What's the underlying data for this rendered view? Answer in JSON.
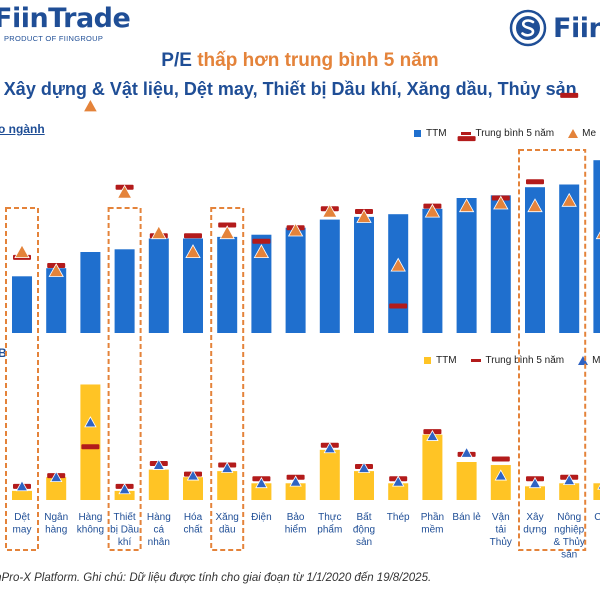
{
  "header": {
    "left_brand": "FiinTrade",
    "left_tagline": "PRODUCT OF FIINGROUP",
    "right_brand": "FiinG",
    "title_part1": "P/E ",
    "title_part2": "thấp hơn trung bình 5 năm",
    "subtitle": "ở Xây dựng & Vật liệu, Dệt may, Thiết bị Dầu khí, Xăng dầu, Thủy sản"
  },
  "colors": {
    "ttm_top": "#1f6fce",
    "ttm_bottom": "#ffc425",
    "avg5y": "#b31b1b",
    "median_top": "#e4833a",
    "median_bottom": "#2e63c3",
    "highlight_box": "#e4833a",
    "text_primary": "#1f4e96"
  },
  "legend_top": {
    "ttm": "TTM",
    "avg": "Trung bình 5 năm",
    "median": "Me"
  },
  "legend_bottom": {
    "ttm": "TTM",
    "avg": "Trung bình 5 năm",
    "median": "Me"
  },
  "footer": "iinPro-X Platform. Ghi chú: Dữ liệu được tính cho giai đoạn từ 1/1/2020 đến 19/8/2025.",
  "chart_data": [
    {
      "type": "bar",
      "panel_label": "o ngành",
      "categories": [
        "Dệt may",
        "Ngân hàng",
        "Hàng không",
        "Thiết bị Dầu khí",
        "Hàng cá nhân",
        "Hóa chất",
        "Xăng dầu",
        "Điện",
        "Bảo hiểm",
        "Thực phẩm",
        "Bất động sản",
        "Thép",
        "Phần mềm",
        "Bán lẻ",
        "Vận tải Thủy",
        "Xây dựng",
        "Nông nghiệp & Thủy sản",
        "Chu"
      ],
      "series": [
        {
          "name": "TTM",
          "values": [
            10.5,
            12.0,
            15.0,
            15.5,
            17.5,
            17.5,
            17.8,
            18.2,
            19.5,
            21.0,
            21.5,
            22.0,
            23.0,
            25.0,
            25.5,
            27.0,
            27.5,
            32.0
          ]
        },
        {
          "name": "Trung bình 5 năm",
          "values": [
            14.0,
            12.5,
            null,
            27.0,
            18.0,
            18.0,
            20.0,
            17.0,
            19.5,
            23.0,
            22.5,
            5.0,
            23.5,
            36.0,
            25.0,
            28.0,
            44.0,
            null
          ]
        },
        {
          "name": "Me",
          "values": [
            15.0,
            11.5,
            42.0,
            26.0,
            18.5,
            15.0,
            18.5,
            15.0,
            19.0,
            22.5,
            21.5,
            12.5,
            22.5,
            23.5,
            24.0,
            23.5,
            24.5,
            18.5
          ]
        }
      ],
      "highlight_groups": [
        [
          "Dệt may"
        ],
        [
          "Thiết bị Dầu khí"
        ],
        [
          "Xăng dầu"
        ],
        [
          "Xây dựng",
          "Nông nghiệp & Thủy sản"
        ]
      ]
    },
    {
      "type": "bar",
      "panel_label": "B",
      "categories": [
        "Dệt may",
        "Ngân hàng",
        "Hàng không",
        "Thiết bị Dầu khí",
        "Hàng cá nhân",
        "Hóa chất",
        "Xăng dầu",
        "Điện",
        "Bảo hiểm",
        "Thực phẩm",
        "Bất động sản",
        "Thép",
        "Phần mềm",
        "Bán lẻ",
        "Vận tải Thủy",
        "Xây dựng",
        "Nông nghiệp & Thủy sản",
        "Chu"
      ],
      "series": [
        {
          "name": "TTM",
          "values": [
            0.6,
            1.5,
            7.6,
            0.6,
            2.0,
            1.5,
            1.9,
            1.1,
            1.1,
            3.3,
            1.9,
            1.1,
            4.3,
            2.5,
            2.3,
            0.9,
            1.1,
            1.1
          ]
        },
        {
          "name": "Trung bình 5 năm",
          "values": [
            0.9,
            1.6,
            3.5,
            0.9,
            2.4,
            1.7,
            2.3,
            1.4,
            1.5,
            3.6,
            2.2,
            1.4,
            4.5,
            3.0,
            2.7,
            1.4,
            1.5,
            null
          ]
        },
        {
          "name": "Me",
          "values": [
            0.9,
            1.5,
            5.1,
            0.7,
            2.3,
            1.6,
            2.1,
            1.1,
            1.2,
            3.4,
            2.1,
            1.2,
            4.2,
            3.1,
            1.6,
            1.1,
            1.3,
            1.0
          ]
        }
      ]
    }
  ]
}
